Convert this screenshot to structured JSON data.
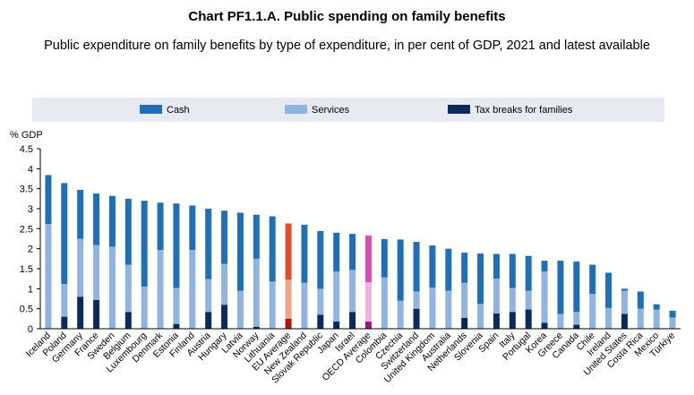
{
  "title": "Chart PF1.1.A. Public spending on family benefits",
  "subtitle": "Public expenditure on family benefits by type of expenditure, in per cent of GDP, 2021 and latest available",
  "colors": {
    "cash": "#1f6fb8",
    "services": "#8fb4e0",
    "tax": "#0b2b5e",
    "eu_cash": "#e24b2b",
    "eu_services": "#f0a489",
    "eu_tax": "#b5120e",
    "oecd_cash": "#d94cb3",
    "oecd_services": "#f0b4dc",
    "oecd_tax": "#9b1680",
    "axis": "#000000",
    "grid": "#d9d9d9",
    "legend_bg": "#e7ebf1"
  },
  "chart_data": {
    "type": "bar",
    "stacked": true,
    "unit_label": "% GDP",
    "ylim": [
      0,
      4.5
    ],
    "yticks": [
      "0",
      "0.5",
      "1",
      "1.5",
      "2",
      "2.5",
      "3",
      "3.5",
      "4",
      "4.5"
    ],
    "legend_placement": "top",
    "grid": false,
    "categories": [
      "Iceland",
      "Poland",
      "Germany",
      "France",
      "Sweden",
      "Belgium",
      "Luxembourg",
      "Denmark",
      "Estonia",
      "Finland",
      "Austria",
      "Hungary",
      "Latvia",
      "Norway",
      "Lithuania",
      "EU Average",
      "New Zealand",
      "Slovak Republic",
      "Japan",
      "Israel",
      "OECD Average",
      "Colombia",
      "Czechia",
      "Switzerland",
      "United Kingdom",
      "Australia",
      "Netherlands",
      "Slovenia",
      "Spain",
      "Italy",
      "Portugal",
      "Korea",
      "Greece",
      "Canada",
      "Chile",
      "Ireland",
      "United States",
      "Costa Rica",
      "Mexico",
      "Türkiye"
    ],
    "highlight": {
      "EU Average": "eu",
      "OECD Average": "oecd"
    },
    "series": [
      {
        "name": "Tax breaks for families",
        "key": "tax",
        "values": [
          0,
          0.3,
          0.8,
          0.72,
          0,
          0.42,
          0,
          0,
          0.12,
          0,
          0.42,
          0.6,
          0,
          0.05,
          0,
          0.25,
          0,
          0.35,
          0.18,
          0.42,
          0.18,
          0,
          0,
          0.5,
          0,
          0,
          0.27,
          0,
          0.38,
          0.42,
          0.48,
          0.15,
          0,
          0.1,
          0,
          0,
          0.37,
          0,
          0,
          0
        ]
      },
      {
        "name": "Services",
        "key": "services",
        "values": [
          2.62,
          0.82,
          1.45,
          1.37,
          2.05,
          1.18,
          1.05,
          1.97,
          0.9,
          1.97,
          0.82,
          1.02,
          0.95,
          1.7,
          1.18,
          0.98,
          1.15,
          0.65,
          1.25,
          1.05,
          0.98,
          1.28,
          0.7,
          0.43,
          1.03,
          0.95,
          0.88,
          0.62,
          0.87,
          0.6,
          0.47,
          1.28,
          0.37,
          0.32,
          0.87,
          0.52,
          0.58,
          0.5,
          0.48,
          0.28
        ]
      },
      {
        "name": "Cash",
        "key": "cash",
        "values": [
          1.22,
          2.52,
          1.22,
          1.29,
          1.27,
          1.65,
          2.15,
          1.18,
          2.11,
          1.11,
          1.76,
          1.33,
          1.95,
          1.1,
          1.63,
          1.4,
          1.45,
          1.44,
          0.97,
          0.9,
          1.17,
          0.96,
          1.53,
          1.24,
          1.05,
          1.05,
          0.75,
          1.26,
          0.62,
          0.85,
          0.87,
          0.27,
          1.33,
          1.26,
          0.73,
          0.88,
          0.05,
          0.43,
          0.13,
          0.17
        ]
      }
    ],
    "legend": [
      "Cash",
      "Services",
      "Tax breaks for families"
    ]
  }
}
